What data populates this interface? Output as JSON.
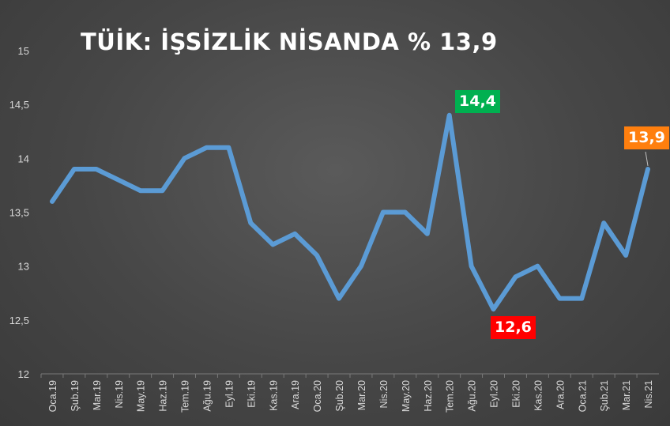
{
  "title": "TÜİK: İŞSİZLİK NİSANDA % 13,9",
  "chart_data": {
    "type": "line",
    "title": "TÜİK: İŞSİZLİK NİSANDA % 13,9",
    "xlabel": "",
    "ylabel": "",
    "ylim": [
      12,
      15
    ],
    "yticks": [
      "12",
      "12,5",
      "13",
      "13,5",
      "14",
      "14,5",
      "15"
    ],
    "grid": false,
    "categories": [
      "Oca.19",
      "Şub.19",
      "Mar.19",
      "Nis.19",
      "May.19",
      "Haz.19",
      "Tem.19",
      "Ağu.19",
      "Eyl.19",
      "Eki.19",
      "Kas.19",
      "Ara.19",
      "Oca.20",
      "Şub.20",
      "Mar.20",
      "Nis.20",
      "May.20",
      "Haz.20",
      "Tem.20",
      "Ağu.20",
      "Eyl.20",
      "Eki.20",
      "Kas.20",
      "Ara.20",
      "Oca.21",
      "Şub.21",
      "Mar.21",
      "Nis.21"
    ],
    "series": [
      {
        "values": [
          13.6,
          13.9,
          13.9,
          13.8,
          13.7,
          13.7,
          14.0,
          14.1,
          14.1,
          13.4,
          13.2,
          13.3,
          13.1,
          12.7,
          13.0,
          13.5,
          13.5,
          13.3,
          14.4,
          13.0,
          12.6,
          12.9,
          13.0,
          12.7,
          12.7,
          13.4,
          13.1,
          13.9
        ],
        "color": "#5b9bd5"
      }
    ],
    "annotations": [
      {
        "text": "14,4",
        "category": "Tem.20",
        "color": "#00b050"
      },
      {
        "text": "12,6",
        "category": "Eyl.20",
        "color": "#ff0000"
      },
      {
        "text": "13,9",
        "category": "Nis.21",
        "color": "#ff7f0e"
      }
    ]
  }
}
